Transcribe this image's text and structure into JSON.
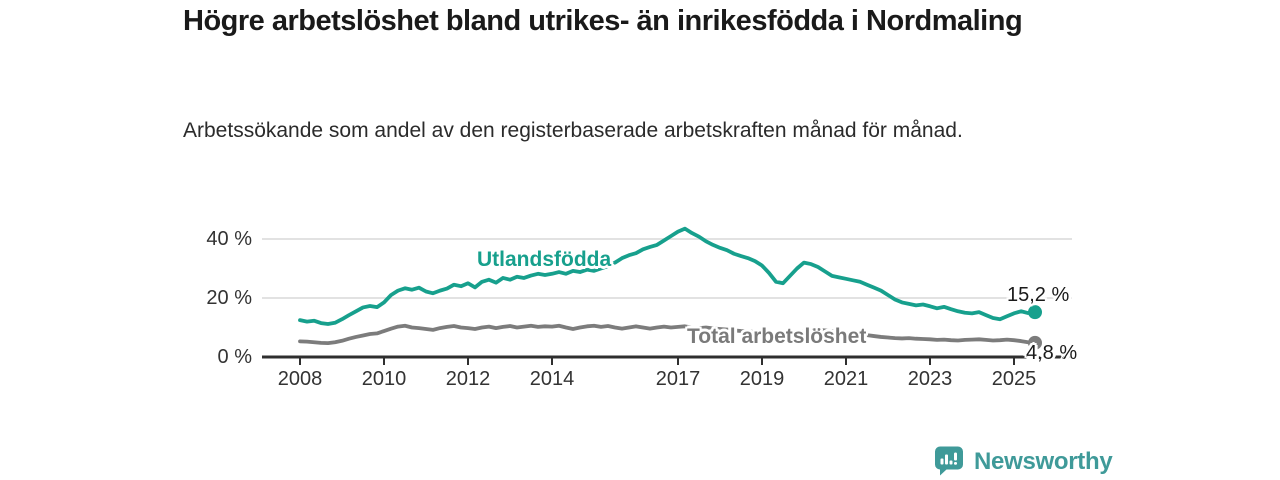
{
  "header": {
    "title": "Högre arbetslöshet bland utrikes- än inrikesfödda i Nordmaling",
    "subtitle": "Arbetssökande som andel av den registerbaserade arbetskraften månad för månad."
  },
  "chart_data": {
    "type": "line",
    "title": "Högre arbetslöshet bland utrikes- än inrikesfödda i Nordmaling",
    "subtitle": "Arbetssökande som andel av den registerbaserade arbetskraften månad för månad.",
    "x_start": 2008,
    "x_step_years": 0.1666667,
    "x_axis": {
      "ticks": [
        2008,
        2010,
        2012,
        2014,
        2017,
        2019,
        2021,
        2023,
        2025
      ]
    },
    "y_axis": {
      "ticks": [
        {
          "label": "0 %",
          "value": 0
        },
        {
          "label": "20 %",
          "value": 20
        },
        {
          "label": "40 %",
          "value": 40
        }
      ],
      "ylim": [
        0,
        45
      ]
    },
    "grid": "horizontal",
    "legend_position": "inline-labels",
    "series": [
      {
        "name": "Utlandsfödda",
        "color": "#17a08d",
        "end_label": "15,2 %",
        "end_value": 15.2,
        "values": [
          12.5,
          12.0,
          12.3,
          11.5,
          11.2,
          11.6,
          12.8,
          14.2,
          15.5,
          16.8,
          17.3,
          16.9,
          18.5,
          21.0,
          22.5,
          23.3,
          22.8,
          23.5,
          22.2,
          21.6,
          22.5,
          23.2,
          24.5,
          24.0,
          25.0,
          23.6,
          25.5,
          26.2,
          25.2,
          26.8,
          26.2,
          27.2,
          26.8,
          27.6,
          28.2,
          27.8,
          28.2,
          28.8,
          28.2,
          29.2,
          28.8,
          29.6,
          29.2,
          30.0,
          30.8,
          32.0,
          33.5,
          34.5,
          35.2,
          36.5,
          37.3,
          38.0,
          39.5,
          41.0,
          42.5,
          43.5,
          42.0,
          40.8,
          39.2,
          38.0,
          37.0,
          36.2,
          35.0,
          34.2,
          33.5,
          32.5,
          31.0,
          28.5,
          25.5,
          25.0,
          27.5,
          30.0,
          32.0,
          31.5,
          30.5,
          29.0,
          27.5,
          27.0,
          26.5,
          26.0,
          25.5,
          24.5,
          23.5,
          22.5,
          21.0,
          19.5,
          18.5,
          18.0,
          17.5,
          17.8,
          17.2,
          16.5,
          17.0,
          16.2,
          15.5,
          15.0,
          14.8,
          15.2,
          14.2,
          13.2,
          12.8,
          13.8,
          14.8,
          15.5,
          14.9,
          15.2
        ]
      },
      {
        "name": "Total arbetslöshet",
        "color": "#7c7c7c",
        "end_label": "4,8 %",
        "end_value": 4.8,
        "values": [
          5.3,
          5.2,
          5.0,
          4.8,
          4.7,
          5.0,
          5.5,
          6.2,
          6.8,
          7.3,
          7.8,
          8.0,
          8.8,
          9.6,
          10.3,
          10.6,
          10.0,
          9.8,
          9.5,
          9.2,
          9.8,
          10.2,
          10.5,
          10.0,
          9.8,
          9.5,
          10.0,
          10.3,
          9.8,
          10.2,
          10.5,
          10.0,
          10.3,
          10.6,
          10.2,
          10.4,
          10.3,
          10.6,
          10.0,
          9.5,
          10.0,
          10.4,
          10.6,
          10.2,
          10.5,
          10.0,
          9.6,
          10.0,
          10.4,
          10.0,
          9.6,
          10.0,
          10.3,
          10.0,
          10.2,
          10.4,
          10.0,
          9.8,
          10.0,
          9.7,
          9.5,
          9.3,
          9.0,
          8.8,
          8.7,
          8.5,
          8.4,
          8.2,
          8.0,
          7.9,
          8.1,
          8.3,
          8.6,
          9.0,
          9.2,
          9.0,
          8.8,
          8.5,
          8.2,
          8.0,
          7.7,
          7.4,
          7.1,
          6.8,
          6.6,
          6.4,
          6.3,
          6.4,
          6.2,
          6.1,
          6.0,
          5.8,
          5.9,
          5.7,
          5.6,
          5.8,
          5.9,
          6.0,
          5.8,
          5.6,
          5.7,
          5.9,
          5.7,
          5.4,
          5.0,
          4.8
        ]
      }
    ],
    "colors": {
      "grid": "#d8d8d8",
      "axis": "#2f2f2f",
      "tick_text": "#333333"
    }
  },
  "footer": {
    "logo_text": "Newsworthy",
    "logo_icon": "newsworthy-speech-bubble-chart-icon",
    "logo_color": "#3f9a99"
  }
}
